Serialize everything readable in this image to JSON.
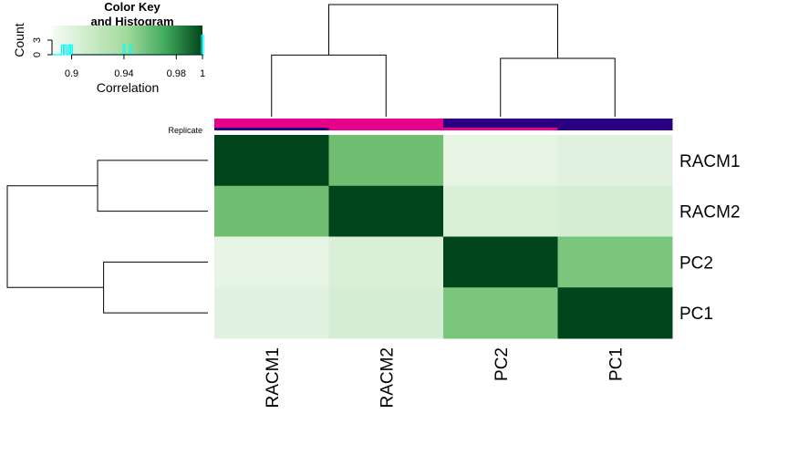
{
  "chart_data": {
    "type": "heatmap",
    "samples": [
      "RACM1",
      "RACM2",
      "PC2",
      "PC1"
    ],
    "row_labels": [
      "RACM1",
      "RACM2",
      "PC2",
      "PC1"
    ],
    "col_labels": [
      "RACM1",
      "RACM2",
      "PC2",
      "PC1"
    ],
    "values": [
      [
        1.0,
        0.945,
        0.893,
        0.895
      ],
      [
        0.945,
        1.0,
        0.898,
        0.9
      ],
      [
        0.893,
        0.898,
        1.0,
        0.94
      ],
      [
        0.895,
        0.9,
        0.94,
        1.0
      ]
    ],
    "color_scale": {
      "low": "#f7fcf5",
      "mid": "#74c476",
      "high": "#00441b"
    },
    "color_key": {
      "title": "Color Key",
      "subtitle": "and Histogram",
      "xlabel": "Correlation",
      "ylabel": "Count",
      "range": [
        0.885,
        1.0
      ],
      "ticks": [
        "0.9",
        "0.94",
        "0.98",
        "1"
      ],
      "tick_values": [
        0.9,
        0.94,
        0.98,
        1.0
      ],
      "count_ticks": [
        "0",
        "3"
      ],
      "count_tick_values": [
        0,
        3
      ],
      "histogram_counts_max": 6,
      "histogram_color": "#00ffff"
    },
    "replicate_annotation": {
      "label": "Replicate",
      "colors": [
        "#e7008a",
        "#e7008a",
        "#2a0080",
        "#2a0080"
      ],
      "secondary_colors": [
        "#2a0080",
        "#e7008a",
        "#e7008a",
        "#2a0080"
      ]
    },
    "dendrogram": {
      "merges": [
        {
          "left": "RACM1",
          "right": "RACM2",
          "height": 0.55
        },
        {
          "left": "PC2",
          "right": "PC1",
          "height": 0.52
        },
        {
          "left": "RACM",
          "right": "PC",
          "height": 1.0
        }
      ]
    }
  }
}
